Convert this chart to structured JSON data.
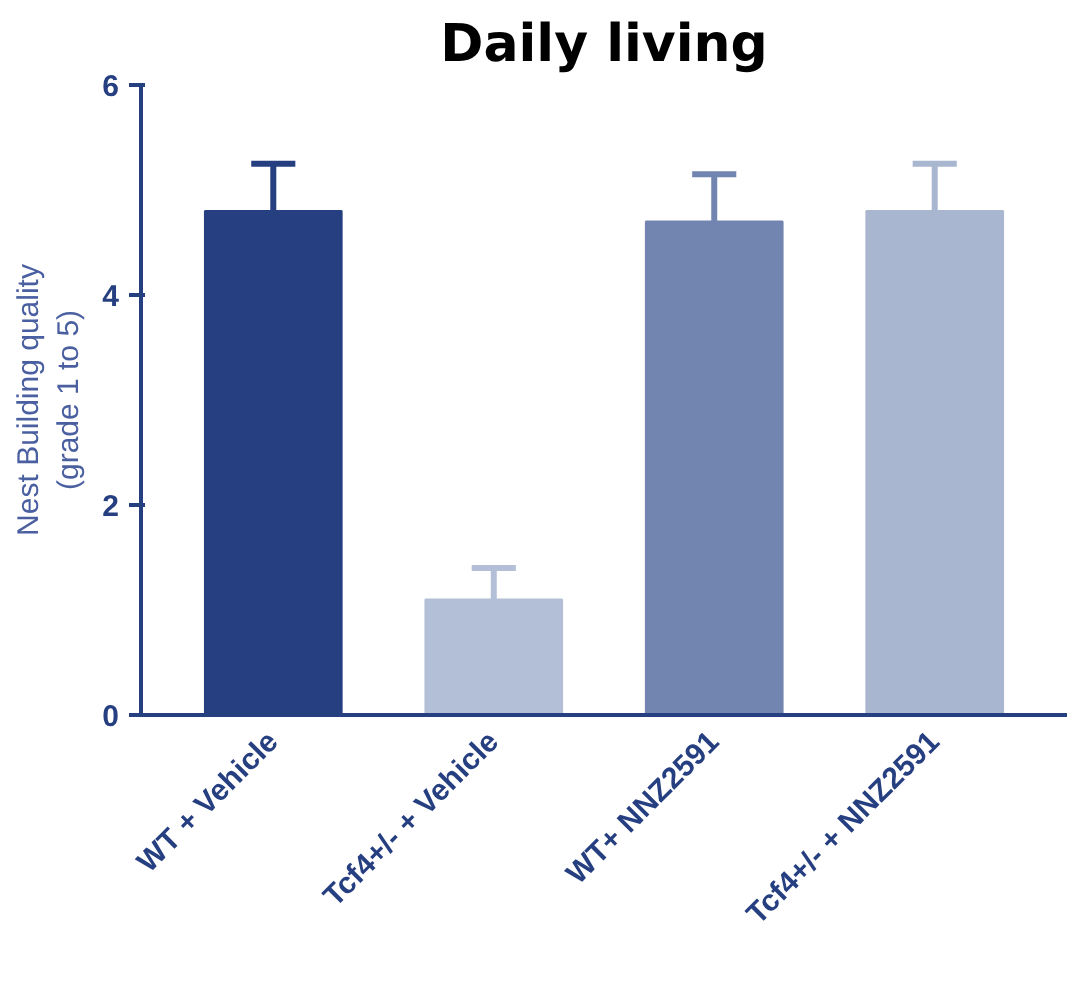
{
  "chart_data": {
    "type": "bar",
    "title": "Daily living",
    "ylabel": "Nest Building quality\n(grade 1 to 5)",
    "categories": [
      "WT + Vehicle",
      "Tcf4+/- + Vehicle",
      "WT+ NNZ2591",
      "Tcf4+/- + NNZ2591"
    ],
    "values": [
      4.8,
      1.1,
      4.7,
      4.8
    ],
    "colors": [
      "#263f80",
      "#b3bfd6",
      "#7284b0",
      "#a9b6cf"
    ],
    "errors": [
      [
        4.8,
        5.25
      ],
      [
        1.1,
        1.4
      ],
      [
        4.7,
        5.15
      ],
      [
        4.8,
        5.25
      ]
    ],
    "ylim": [
      0,
      6
    ],
    "yticks": [
      0,
      2,
      4,
      6
    ],
    "grid": false
  }
}
